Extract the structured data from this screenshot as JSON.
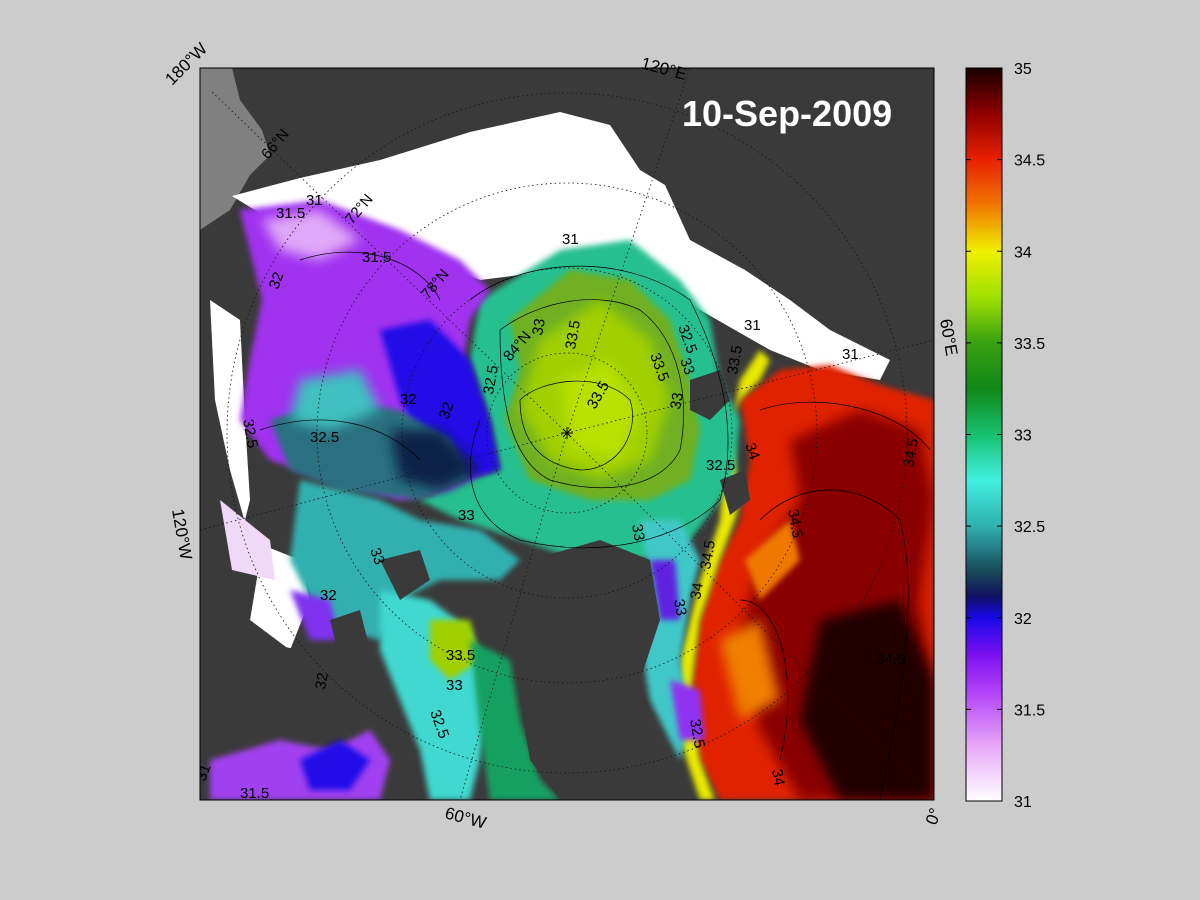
{
  "title": "10-Sep-2009",
  "longitude_labels": {
    "lon_180w": "180°W",
    "lon_120e": "120°E",
    "lon_60e": "60°E",
    "lon_120w": "120°W",
    "lon_60w": "60°W",
    "lon_0": "0°"
  },
  "latitude_labels": {
    "lat_66n": "66°N",
    "lat_72n": "72°N",
    "lat_78n": "78°N",
    "lat_84n": "84°N"
  },
  "colorbar": {
    "min": 31,
    "max": 35,
    "ticks": [
      "31",
      "31.5",
      "32",
      "32.5",
      "33",
      "33.5",
      "34",
      "34.5",
      "35"
    ],
    "stops": [
      {
        "v": 31.0,
        "c": "#ffffff"
      },
      {
        "v": 31.3,
        "c": "#e8a8f8"
      },
      {
        "v": 31.6,
        "c": "#b040f8"
      },
      {
        "v": 31.8,
        "c": "#7a10f0"
      },
      {
        "v": 32.0,
        "c": "#1808e8"
      },
      {
        "v": 32.12,
        "c": "#101060"
      },
      {
        "v": 32.25,
        "c": "#184858"
      },
      {
        "v": 32.5,
        "c": "#30b0b0"
      },
      {
        "v": 32.75,
        "c": "#40f0e0"
      },
      {
        "v": 33.0,
        "c": "#18c070"
      },
      {
        "v": 33.25,
        "c": "#108818"
      },
      {
        "v": 33.5,
        "c": "#38a010"
      },
      {
        "v": 33.75,
        "c": "#a0e000"
      },
      {
        "v": 34.0,
        "c": "#f0f000"
      },
      {
        "v": 34.25,
        "c": "#f07800"
      },
      {
        "v": 34.5,
        "c": "#e82000"
      },
      {
        "v": 34.75,
        "c": "#900000"
      },
      {
        "v": 35.0,
        "c": "#180000"
      }
    ]
  },
  "contour_labels": {
    "a": "31.5",
    "b": "31",
    "c": "31.5",
    "d": "32",
    "e": "31",
    "f": "32.5",
    "g": "33",
    "h": "33.5",
    "i": "33.5",
    "j": "33",
    "k": "32",
    "l": "32",
    "m": "32.5",
    "n": "33",
    "o": "33",
    "p": "33.5",
    "q": "33",
    "r": "32.5",
    "s": "33.5",
    "t": "31",
    "u": "32",
    "v": "34.5",
    "w": "34.5",
    "x": "34.5",
    "y": "34",
    "z": "34.5",
    "aa": "34",
    "ab": "33",
    "ac": "32.5",
    "ad": "33.5",
    "ae": "33",
    "af": "31",
    "ag": "31.5",
    "ah": "32",
    "ai": "34",
    "aj": "31",
    "ak": "32.5",
    "al": "32.5",
    "am": "33",
    "an": "32.5"
  },
  "colors": {
    "background": "#cccccc",
    "land": "#3a3a3a",
    "ice": "#ffffff",
    "shelf": "#808080"
  }
}
